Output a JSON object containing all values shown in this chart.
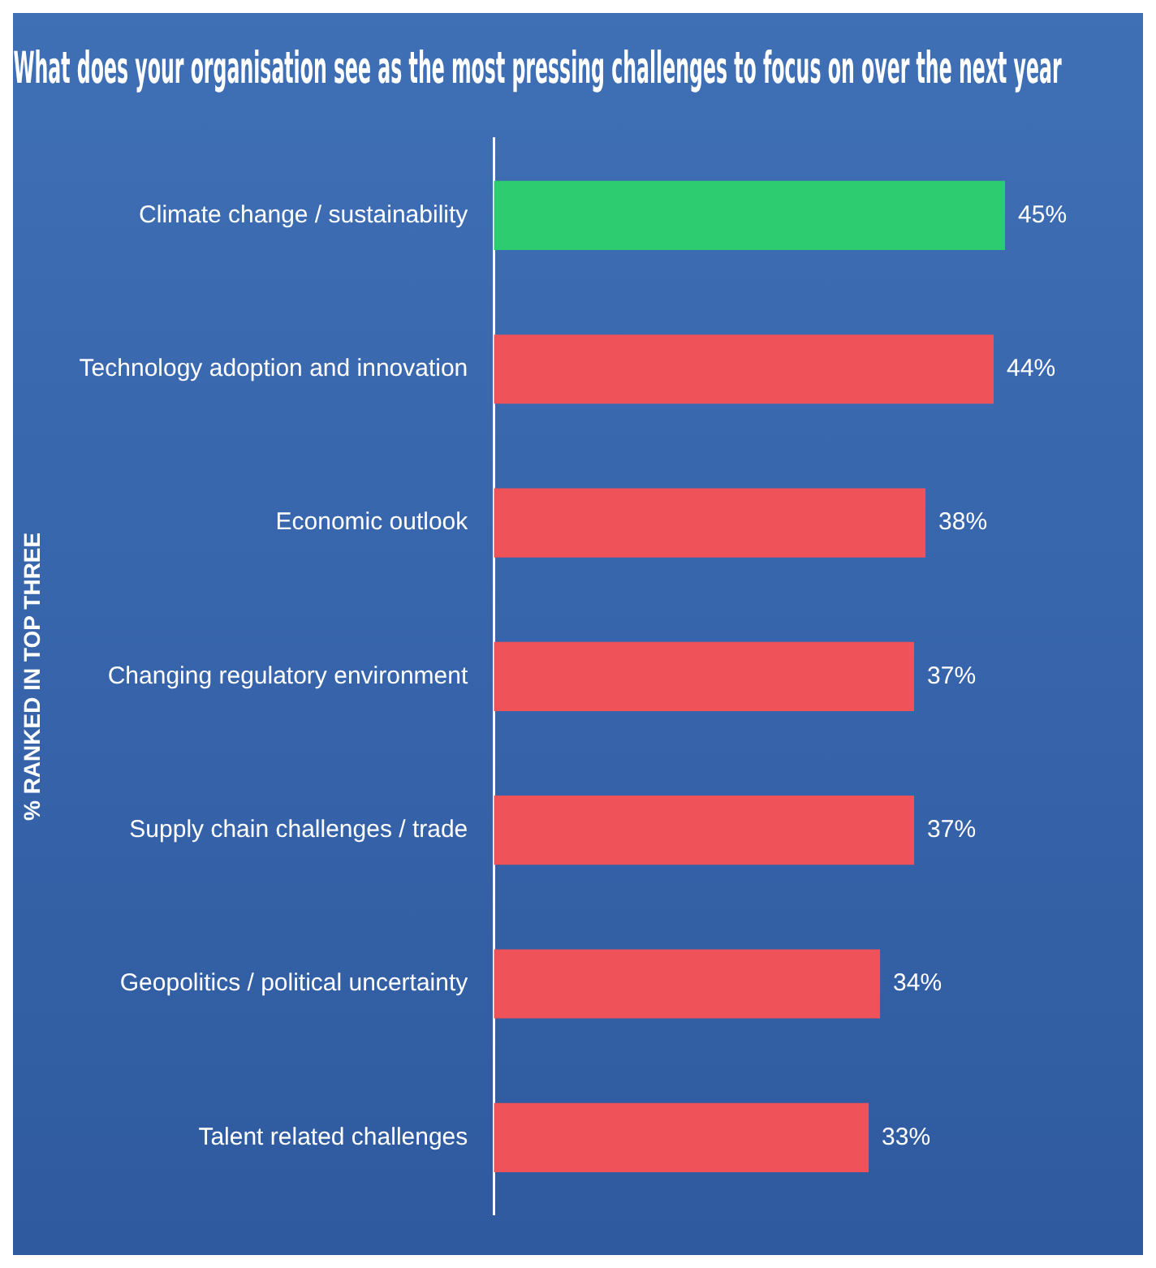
{
  "chart_data": {
    "type": "bar",
    "orientation": "horizontal",
    "title": "What does your organisation see as the most pressing challenges to focus on over the next year",
    "ylabel": "% RANKED IN TOP THREE",
    "categories": [
      "Climate change / sustainability",
      "Technology adoption and innovation",
      "Economic outlook",
      "Changing regulatory environment",
      "Supply chain challenges / trade",
      "Geopolitics / political uncertainty",
      "Talent related challenges"
    ],
    "values": [
      45,
      44,
      38,
      37,
      37,
      34,
      33
    ],
    "colors": [
      "#2ecc71",
      "#f0525a",
      "#f0525a",
      "#f0525a",
      "#f0525a",
      "#f0525a",
      "#f0525a"
    ],
    "value_labels": [
      "45%",
      "44%",
      "38%",
      "37%",
      "37%",
      "34%",
      "33%"
    ],
    "grid": false,
    "legend": false
  }
}
